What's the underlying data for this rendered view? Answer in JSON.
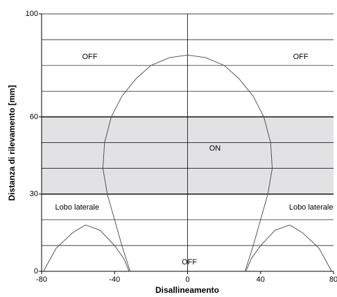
{
  "chart_data": {
    "type": "line",
    "x_label": "Disallineamento",
    "y_label": "Distanza di rilevamento [mm]",
    "xlim": [
      -80,
      80
    ],
    "xticks": [
      -80,
      -40,
      0,
      40,
      80
    ],
    "ylim": [
      0,
      100
    ],
    "yticks": [
      0,
      30,
      60,
      100
    ],
    "ygrid": [
      10,
      20,
      30,
      40,
      50,
      60,
      70,
      80,
      90,
      100
    ],
    "band": {
      "range": [
        30,
        60
      ],
      "color": "#e2e2e4"
    },
    "series": [
      {
        "color": "#444",
        "x": [
          -31.5,
          -36,
          -40,
          -44,
          -46.4,
          -45.5,
          -41.8,
          -36,
          -28,
          -20,
          -10,
          0,
          10,
          20,
          28,
          36,
          41.8,
          45.5,
          46.4,
          44,
          40,
          36,
          31.5
        ],
        "values": [
          0,
          10,
          20,
          30,
          40,
          50,
          60,
          68,
          75,
          80,
          83,
          84,
          83,
          80,
          75,
          68,
          60,
          50,
          40,
          30,
          20,
          10,
          0
        ]
      },
      {
        "color": "#444",
        "x": [
          -79,
          -72,
          -63,
          -56,
          -48,
          -40,
          -35,
          -32
        ],
        "values": [
          0,
          9,
          15,
          18,
          16,
          10,
          5,
          0
        ]
      },
      {
        "color": "#444",
        "x": [
          32,
          35,
          40,
          48,
          56,
          63,
          72,
          79
        ],
        "values": [
          0,
          5,
          10,
          16,
          18,
          15,
          9,
          0
        ]
      }
    ],
    "annotations": [
      {
        "text": "OFF",
        "x": -53.6,
        "y": 83.3
      },
      {
        "text": "OFF",
        "x": 62,
        "y": 83.3
      },
      {
        "text": "ON",
        "x": 15,
        "y": 47.7
      },
      {
        "text": "Lobo laterale",
        "x": -60.5,
        "y": 24.8
      },
      {
        "text": "Lobo laterale",
        "x": 67.7,
        "y": 24.8
      },
      {
        "text": "OFF",
        "x": 1,
        "y": 3.5
      }
    ]
  }
}
